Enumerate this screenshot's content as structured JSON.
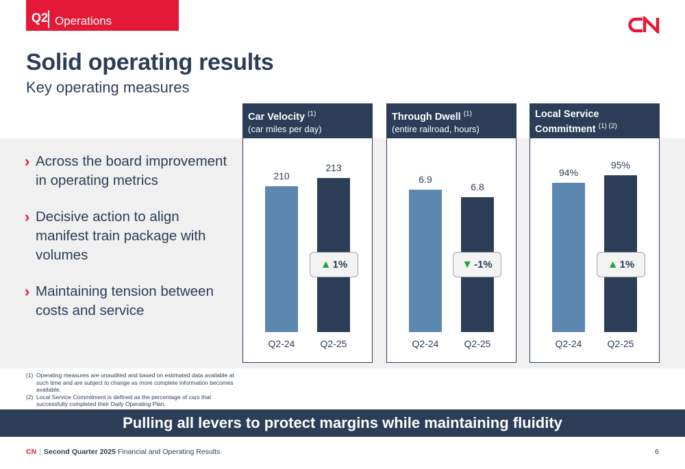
{
  "header": {
    "quarter": "Q2",
    "section": "Operations",
    "logo_text": "CN",
    "brand_color": "#e31937"
  },
  "title": "Solid operating results",
  "subtitle": "Key operating measures",
  "bullets": [
    "Across the board improvement in operating metrics",
    "Decisive action to align manifest train package with volumes",
    "Maintaining tension between costs and service"
  ],
  "chart_data": [
    {
      "type": "bar",
      "title": "Car Velocity",
      "title_note": "(1)",
      "subtitle": "(car miles per day)",
      "categories": [
        "Q2-24",
        "Q2-25"
      ],
      "values": [
        210,
        213
      ],
      "value_labels": [
        "210",
        "213"
      ],
      "change": "1%",
      "change_direction": "up",
      "colors": [
        "#5b87b1",
        "#2b3d57"
      ]
    },
    {
      "type": "bar",
      "title": "Through Dwell",
      "title_note": "(1)",
      "subtitle": "(entire railroad, hours)",
      "categories": [
        "Q2-24",
        "Q2-25"
      ],
      "values": [
        6.9,
        6.8
      ],
      "value_labels": [
        "6.9",
        "6.8"
      ],
      "change": "-1%",
      "change_direction": "down",
      "colors": [
        "#5b87b1",
        "#2b3d57"
      ]
    },
    {
      "type": "bar",
      "title": "Local Service Commitment",
      "title_note": "(1) (2)",
      "subtitle": "",
      "categories": [
        "Q2-24",
        "Q2-25"
      ],
      "values": [
        94,
        95
      ],
      "value_labels": [
        "94%",
        "95%"
      ],
      "change": "1%",
      "change_direction": "up",
      "colors": [
        "#5b87b1",
        "#2b3d57"
      ]
    }
  ],
  "footnotes": [
    {
      "num": "(1)",
      "text": "Operating measures are unaudited and based on estimated data available at such time and are subject to change as more complete information becomes available."
    },
    {
      "num": "(2)",
      "text": "Local Service Commitment is defined as the percentage of cars that successfully completed their Daily Operating Plan."
    }
  ],
  "banner": "Pulling all levers to protect margins while maintaining fluidity",
  "footer": {
    "brand": "CN",
    "bold_text": "Second Quarter 2025",
    "text": "Financial and Operating Results",
    "page": "6"
  }
}
